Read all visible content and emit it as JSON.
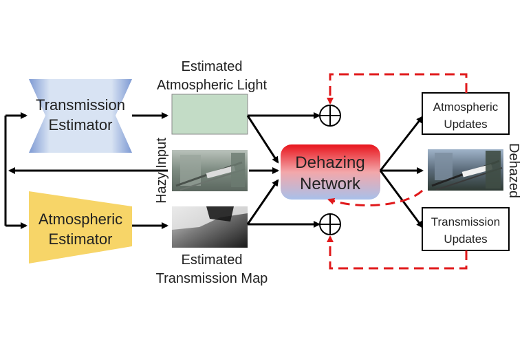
{
  "transmission_estimator": {
    "line1": "Transmission",
    "line2": "Estimator",
    "color_top": "#b7c9e6",
    "color_side": "#6f8fcf"
  },
  "atmospheric_estimator": {
    "line1": "Atmospheric",
    "line2": "Estimator",
    "color": "#f7d568"
  },
  "estimated_atmospheric_light": {
    "line1": "Estimated",
    "line2": "Atmospheric Light",
    "swatch_color": "#c3dcc6"
  },
  "hazy_input": {
    "label": "Hazy Input"
  },
  "estimated_transmission_map": {
    "line1": "Estimated",
    "line2": "Transmission Map"
  },
  "dehazing_network": {
    "line1": "Dehazing",
    "line2": "Network",
    "color_top": "#e8141c",
    "color_bottom": "#a8c0ea"
  },
  "atmospheric_updates": {
    "line1": "Atmospheric",
    "line2": "Updates"
  },
  "transmission_updates": {
    "line1": "Transmission",
    "line2": "Updates"
  },
  "dehazed_output": {
    "label": "Dehazed"
  },
  "colors": {
    "feedback": "#e0191b",
    "arrow": "#000000"
  }
}
